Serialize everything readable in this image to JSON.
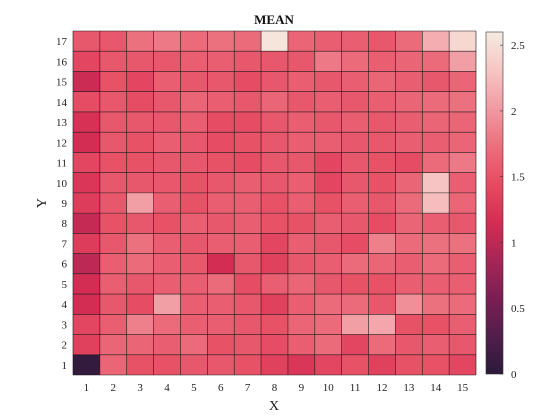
{
  "chart_data": {
    "type": "heatmap",
    "title": "MEAN",
    "xlabel": "X",
    "ylabel": "Y",
    "x": [
      1,
      2,
      3,
      4,
      5,
      6,
      7,
      8,
      9,
      10,
      11,
      12,
      13,
      14,
      15
    ],
    "y": [
      1,
      2,
      3,
      4,
      5,
      6,
      7,
      8,
      9,
      10,
      11,
      12,
      13,
      14,
      15,
      16,
      17
    ],
    "values": [
      [
        0.05,
        1.65,
        1.5,
        1.5,
        1.55,
        1.55,
        1.5,
        1.35,
        1.25,
        1.4,
        1.5,
        1.35,
        1.5,
        1.5,
        1.4
      ],
      [
        1.35,
        1.65,
        1.65,
        1.6,
        1.7,
        1.5,
        1.55,
        1.45,
        1.6,
        1.7,
        1.4,
        1.7,
        1.55,
        1.6,
        1.55
      ],
      [
        1.4,
        1.6,
        1.85,
        1.7,
        1.6,
        1.6,
        1.55,
        1.5,
        1.65,
        1.7,
        2.05,
        2.1,
        1.5,
        1.5,
        1.6
      ],
      [
        1.15,
        1.55,
        1.45,
        2.05,
        1.6,
        1.6,
        1.55,
        1.35,
        1.6,
        1.7,
        1.7,
        1.55,
        1.95,
        1.75,
        1.7
      ],
      [
        1.15,
        1.6,
        1.55,
        1.6,
        1.6,
        1.7,
        1.45,
        1.6,
        1.65,
        1.55,
        1.5,
        1.5,
        1.6,
        1.6,
        1.6
      ],
      [
        1.0,
        1.6,
        1.7,
        1.6,
        1.55,
        1.15,
        1.55,
        1.35,
        1.55,
        1.6,
        1.7,
        1.65,
        1.6,
        1.7,
        1.6
      ],
      [
        1.3,
        1.55,
        1.75,
        1.6,
        1.55,
        1.6,
        1.6,
        1.4,
        1.6,
        1.55,
        1.45,
        1.85,
        1.7,
        1.75,
        1.75
      ],
      [
        1.05,
        1.5,
        1.55,
        1.5,
        1.6,
        1.55,
        1.6,
        1.5,
        1.5,
        1.6,
        1.55,
        1.45,
        1.65,
        1.6,
        1.55
      ],
      [
        1.3,
        1.55,
        2.05,
        1.6,
        1.5,
        1.6,
        1.6,
        1.5,
        1.6,
        1.5,
        1.6,
        1.55,
        1.7,
        2.25,
        1.65
      ],
      [
        1.25,
        1.55,
        1.55,
        1.55,
        1.5,
        1.55,
        1.6,
        1.55,
        1.6,
        1.4,
        1.55,
        1.5,
        1.65,
        2.3,
        1.6
      ],
      [
        1.4,
        1.5,
        1.5,
        1.55,
        1.55,
        1.5,
        1.45,
        1.55,
        1.55,
        1.4,
        1.55,
        1.5,
        1.45,
        1.7,
        1.8
      ],
      [
        1.15,
        1.55,
        1.5,
        1.6,
        1.55,
        1.45,
        1.5,
        1.55,
        1.6,
        1.6,
        1.55,
        1.55,
        1.6,
        1.6,
        1.65
      ],
      [
        1.2,
        1.55,
        1.55,
        1.55,
        1.6,
        1.45,
        1.45,
        1.55,
        1.6,
        1.55,
        1.6,
        1.55,
        1.6,
        1.65,
        1.65
      ],
      [
        1.45,
        1.55,
        1.45,
        1.55,
        1.65,
        1.6,
        1.55,
        1.65,
        1.55,
        1.6,
        1.55,
        1.6,
        1.65,
        1.7,
        1.75
      ],
      [
        1.1,
        1.5,
        1.4,
        1.6,
        1.55,
        1.55,
        1.45,
        1.55,
        1.6,
        1.55,
        1.6,
        1.65,
        1.6,
        1.55,
        1.65
      ],
      [
        1.4,
        1.55,
        1.55,
        1.55,
        1.6,
        1.6,
        1.55,
        1.55,
        1.55,
        1.8,
        1.7,
        1.6,
        1.65,
        1.7,
        2.05
      ],
      [
        1.55,
        1.55,
        1.75,
        1.8,
        1.7,
        1.75,
        1.7,
        2.55,
        1.65,
        1.6,
        1.6,
        1.55,
        1.7,
        2.15,
        2.45
      ]
    ],
    "colorbar": {
      "min": 0,
      "max": 2.6,
      "ticks": [
        "0",
        "0.5",
        "1",
        "1.5",
        "2",
        "2.5"
      ],
      "tick_values": [
        0,
        0.5,
        1,
        1.5,
        2,
        2.5
      ]
    },
    "colors": {
      "stops": [
        "#2b1a3a",
        "#521e4b",
        "#7c1e54",
        "#a72656",
        "#d42d53",
        "#e64b62",
        "#ec6f7d",
        "#f29aa2",
        "#f6c6c4",
        "#f5ebe0"
      ],
      "grid_line": "#1a1a1a"
    }
  }
}
